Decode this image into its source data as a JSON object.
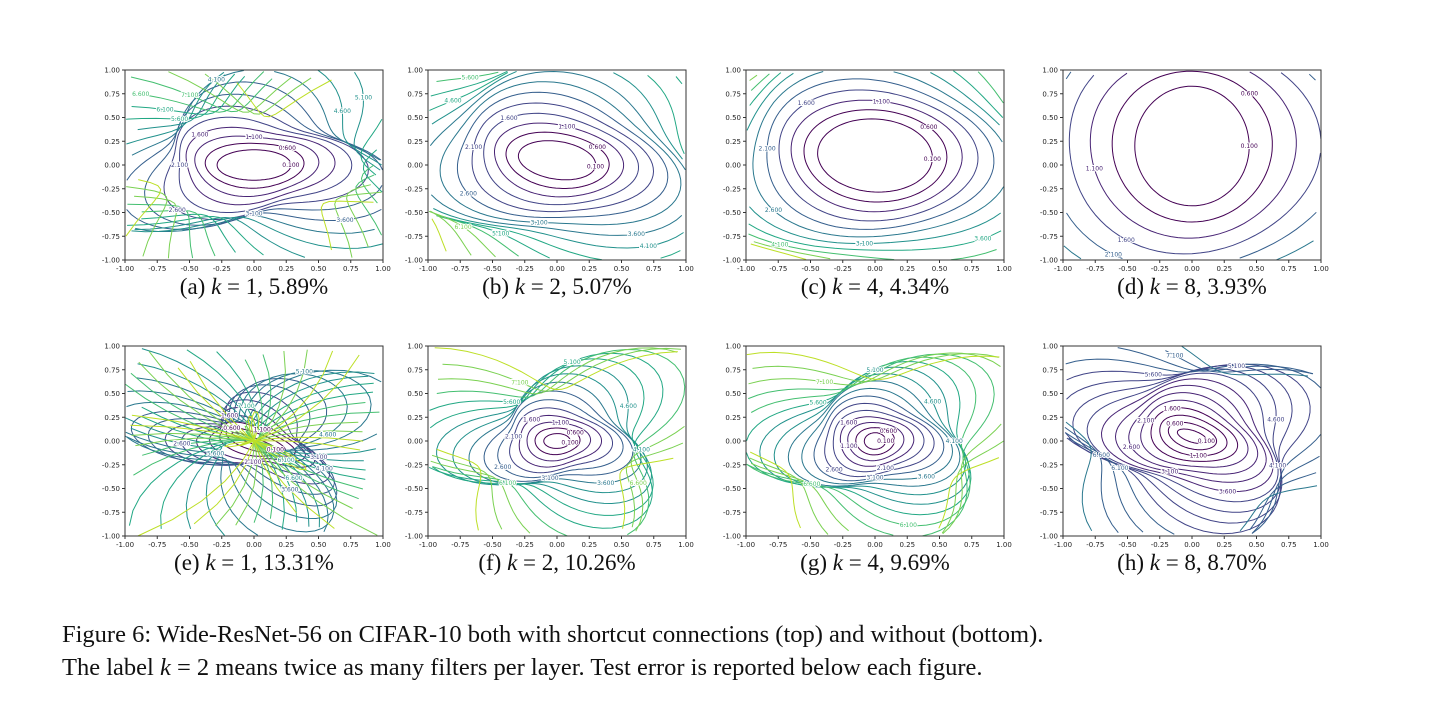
{
  "chart_data": [
    {
      "type": "contour",
      "panel": "(a)",
      "k": 1,
      "test_error": "5.89%",
      "row": "with shortcut connections",
      "xlim": [
        -1,
        1
      ],
      "ylim": [
        -1,
        1
      ]
    },
    {
      "type": "contour",
      "panel": "(b)",
      "k": 2,
      "test_error": "5.07%",
      "row": "with shortcut connections",
      "xlim": [
        -1,
        1
      ],
      "ylim": [
        -1,
        1
      ]
    },
    {
      "type": "contour",
      "panel": "(c)",
      "k": 4,
      "test_error": "4.34%",
      "row": "with shortcut connections",
      "xlim": [
        -1,
        1
      ],
      "ylim": [
        -1,
        1
      ]
    },
    {
      "type": "contour",
      "panel": "(d)",
      "k": 8,
      "test_error": "3.93%",
      "row": "with shortcut connections",
      "xlim": [
        -1,
        1
      ],
      "ylim": [
        -1,
        1
      ]
    },
    {
      "type": "contour",
      "panel": "(e)",
      "k": 1,
      "test_error": "13.31%",
      "row": "without shortcut connections",
      "xlim": [
        -1,
        1
      ],
      "ylim": [
        -1,
        1
      ]
    },
    {
      "type": "contour",
      "panel": "(f)",
      "k": 2,
      "test_error": "10.26%",
      "row": "without shortcut connections",
      "xlim": [
        -1,
        1
      ],
      "ylim": [
        -1,
        1
      ]
    },
    {
      "type": "contour",
      "panel": "(g)",
      "k": 4,
      "test_error": "9.69%",
      "row": "without shortcut connections",
      "xlim": [
        -1,
        1
      ],
      "ylim": [
        -1,
        1
      ]
    },
    {
      "type": "contour",
      "panel": "(h)",
      "k": 8,
      "test_error": "8.70%",
      "row": "without shortcut connections",
      "xlim": [
        -1,
        1
      ],
      "ylim": [
        -1,
        1
      ]
    }
  ],
  "ticks": [
    "-1.00",
    "-0.75",
    "-0.50",
    "-0.25",
    "0.00",
    "0.25",
    "0.50",
    "0.75",
    "1.00"
  ],
  "levels": [
    "0.100",
    "0.600",
    "1.100",
    "1.600",
    "2.100",
    "2.600",
    "3.100",
    "3.600",
    "4.100",
    "4.600",
    "5.100",
    "5.600",
    "6.100",
    "6.600",
    "7.100"
  ],
  "colormap": "viridis",
  "captions": [
    {
      "label": "(a)",
      "k": "k",
      "eq": " = 1, 5.89%"
    },
    {
      "label": "(b)",
      "k": "k",
      "eq": " = 2, 5.07%"
    },
    {
      "label": "(c)",
      "k": "k",
      "eq": " = 4, 4.34%"
    },
    {
      "label": "(d)",
      "k": "k",
      "eq": " = 8, 3.93%"
    },
    {
      "label": "(e)",
      "k": "k",
      "eq": " = 1, 13.31%"
    },
    {
      "label": "(f)",
      "k": "k",
      "eq": " = 2, 10.26%"
    },
    {
      "label": "(g)",
      "k": "k",
      "eq": " = 4, 9.69%"
    },
    {
      "label": "(h)",
      "k": "k",
      "eq": " = 8, 8.70%"
    }
  ],
  "figure_caption": {
    "line1": "Figure 6: Wide-ResNet-56 on CIFAR-10 both with shortcut connections (top) and without (bottom).",
    "line2a": "The label ",
    "line2k": "k",
    "line2b": " = 2 means twice as many filters per layer. Test error is reported below each figure."
  }
}
